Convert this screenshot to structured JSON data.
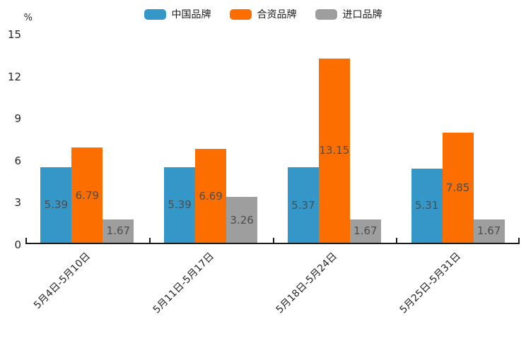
{
  "chart_data": {
    "type": "bar",
    "title": "",
    "ylabel": "%",
    "categories": [
      "5月4日-5月10日",
      "5月11日-5月17日",
      "5月18日-5月24日",
      "5月25日-5月31日"
    ],
    "series": [
      {
        "key": "chinese-brands",
        "name": "中国品牌",
        "color": "#3596C8",
        "values": [
          5.39,
          5.39,
          5.37,
          5.31
        ]
      },
      {
        "key": "joint-venture-brands",
        "name": "合资品牌",
        "color": "#FC6E00",
        "values": [
          6.79,
          6.69,
          13.15,
          7.85
        ]
      },
      {
        "key": "imported-brands",
        "name": "进口品牌",
        "color": "#9E9E9E",
        "values": [
          1.67,
          3.26,
          1.67,
          1.67
        ]
      }
    ],
    "ylim": [
      0,
      15
    ],
    "yticks": [
      0,
      3,
      6,
      9,
      12,
      15
    ],
    "grid": false,
    "legend_position": "top",
    "value_labels_shown": true,
    "axis_color": "#1A1A1A",
    "value_label_color": "#4D4D4D"
  }
}
